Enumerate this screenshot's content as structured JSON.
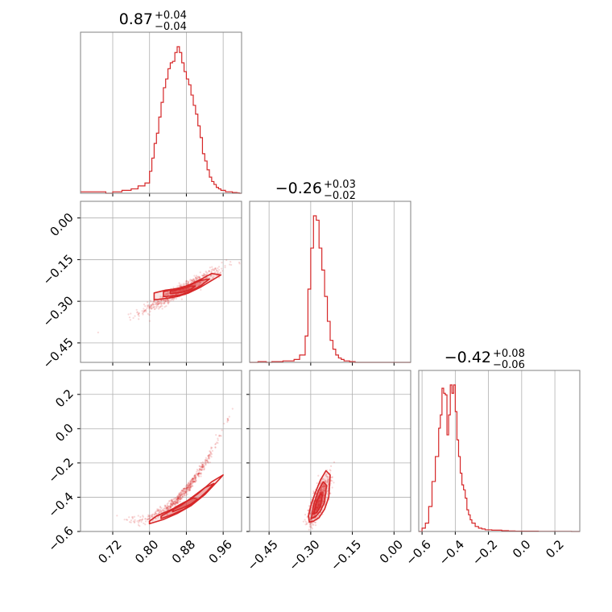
{
  "colors": {
    "series": "#d62728",
    "grid": "#b0b0b0",
    "frame": "#808080",
    "text": "#000000"
  },
  "chart_data": [
    {
      "type": "histogram",
      "panel": "x0-marginal",
      "title_main": "0.87",
      "title_plus": "+0.04",
      "title_minus": "−0.04",
      "xlim": [
        0.65,
        1.0
      ],
      "xticks": [
        0.72,
        0.8,
        0.88,
        0.96
      ],
      "bins_x": [
        0.65,
        0.677,
        0.705,
        0.72,
        0.74,
        0.76,
        0.775,
        0.79,
        0.8,
        0.805,
        0.81,
        0.815,
        0.82,
        0.825,
        0.83,
        0.835,
        0.84,
        0.845,
        0.85,
        0.855,
        0.86,
        0.865,
        0.87,
        0.875,
        0.88,
        0.885,
        0.89,
        0.895,
        0.9,
        0.905,
        0.91,
        0.915,
        0.92,
        0.925,
        0.93,
        0.935,
        0.94,
        0.945,
        0.95,
        0.955,
        0.96,
        0.965,
        0.97,
        0.975,
        0.98,
        0.985,
        0.99,
        0.995,
        1.0
      ],
      "counts": [
        0.01,
        0.01,
        0.0,
        0.01,
        0.02,
        0.03,
        0.05,
        0.07,
        0.15,
        0.24,
        0.34,
        0.41,
        0.52,
        0.62,
        0.72,
        0.78,
        0.85,
        0.89,
        0.9,
        0.96,
        1.0,
        0.96,
        0.89,
        0.83,
        0.78,
        0.74,
        0.67,
        0.6,
        0.54,
        0.46,
        0.38,
        0.27,
        0.22,
        0.16,
        0.11,
        0.08,
        0.06,
        0.04,
        0.03,
        0.02,
        0.02,
        0.01,
        0.01,
        0.01,
        0.005,
        0.005,
        0.003,
        0.0
      ]
    },
    {
      "type": "histogram",
      "panel": "x1-marginal",
      "title_main": "−0.26",
      "title_plus": "+0.03",
      "title_minus": "−0.02",
      "xlim": [
        -0.52,
        0.06
      ],
      "bins_x": [
        -0.52,
        -0.49,
        -0.46,
        -0.44,
        -0.42,
        -0.4,
        -0.38,
        -0.36,
        -0.34,
        -0.32,
        -0.31,
        -0.3,
        -0.29,
        -0.28,
        -0.27,
        -0.26,
        -0.25,
        -0.24,
        -0.23,
        -0.22,
        -0.21,
        -0.2,
        -0.19,
        -0.18,
        -0.17,
        -0.16,
        -0.14,
        -0.1,
        0.06
      ],
      "counts": [
        0.0,
        0.005,
        0.0,
        0.005,
        0.005,
        0.01,
        0.01,
        0.02,
        0.05,
        0.18,
        0.5,
        0.78,
        1.0,
        0.97,
        0.78,
        0.63,
        0.45,
        0.28,
        0.15,
        0.09,
        0.05,
        0.03,
        0.02,
        0.01,
        0.01,
        0.005,
        0.0,
        0.0
      ]
    },
    {
      "type": "histogram",
      "panel": "x2-marginal",
      "title_main": "−0.42",
      "title_plus": "+0.08",
      "title_minus": "−0.06",
      "xlim": [
        -0.62,
        0.35
      ],
      "xticks": [
        -0.6,
        -0.4,
        -0.2,
        0.0,
        0.2
      ],
      "bins_x": [
        -0.62,
        -0.6,
        -0.58,
        -0.56,
        -0.54,
        -0.52,
        -0.5,
        -0.49,
        -0.48,
        -0.47,
        -0.46,
        -0.45,
        -0.44,
        -0.43,
        -0.42,
        -0.41,
        -0.4,
        -0.39,
        -0.38,
        -0.37,
        -0.36,
        -0.35,
        -0.34,
        -0.33,
        -0.32,
        -0.31,
        -0.3,
        -0.28,
        -0.26,
        -0.24,
        -0.22,
        -0.2,
        -0.18,
        -0.16,
        -0.12,
        -0.08,
        -0.04,
        0.0,
        0.1,
        0.3,
        0.35
      ],
      "counts": [
        0.0,
        0.02,
        0.05,
        0.15,
        0.3,
        0.45,
        0.62,
        0.7,
        0.86,
        0.83,
        0.82,
        0.58,
        0.7,
        0.88,
        0.83,
        0.88,
        0.72,
        0.55,
        0.45,
        0.35,
        0.28,
        0.25,
        0.2,
        0.13,
        0.1,
        0.07,
        0.05,
        0.03,
        0.02,
        0.015,
        0.01,
        0.01,
        0.008,
        0.008,
        0.005,
        0.003,
        0.002,
        0.002,
        0.001,
        0.0
      ]
    },
    {
      "type": "scatter-contour",
      "panel": "x0-vs-x1",
      "xlim": [
        0.65,
        1.0
      ],
      "ylim": [
        -0.52,
        0.06
      ],
      "yticks": [
        0.0,
        -0.15,
        -0.3,
        -0.45
      ],
      "ytick_labels": [
        "0.00",
        "−0.15",
        "−0.30",
        "−0.45"
      ],
      "ridge": {
        "x0": 0.87,
        "y0": -0.26,
        "slope": 0.87
      },
      "contours": [
        {
          "x": [
            0.81,
            0.835,
            0.86,
            0.885,
            0.91,
            0.935,
            0.955,
            0.935,
            0.91,
            0.885,
            0.86,
            0.835,
            0.81
          ],
          "y": [
            -0.295,
            -0.29,
            -0.283,
            -0.27,
            -0.25,
            -0.225,
            -0.205,
            -0.2,
            -0.222,
            -0.242,
            -0.255,
            -0.26,
            -0.27
          ]
        },
        {
          "x": [
            0.83,
            0.85,
            0.87,
            0.89,
            0.91,
            0.93,
            0.91,
            0.89,
            0.87,
            0.85,
            0.83
          ],
          "y": [
            -0.283,
            -0.281,
            -0.276,
            -0.262,
            -0.245,
            -0.22,
            -0.225,
            -0.24,
            -0.25,
            -0.257,
            -0.266
          ]
        },
        {
          "x": [
            0.845,
            0.86,
            0.875,
            0.89,
            0.9,
            0.89,
            0.875,
            0.86,
            0.845
          ],
          "y": [
            -0.272,
            -0.27,
            -0.266,
            -0.257,
            -0.245,
            -0.245,
            -0.252,
            -0.259,
            -0.264
          ]
        }
      ]
    },
    {
      "type": "scatter-contour",
      "panel": "x0-vs-x2",
      "xlim": [
        0.65,
        1.0
      ],
      "ylim": [
        -0.6,
        0.34
      ],
      "xticks": [
        0.72,
        0.8,
        0.88,
        0.96
      ],
      "xtick_labels": [
        "0.72",
        "0.80",
        "0.88",
        "0.96"
      ],
      "yticks": [
        0.2,
        0.0,
        -0.2,
        -0.4,
        -0.6
      ],
      "ytick_labels": [
        "0.2",
        "0.0",
        "−0.2",
        "−0.4",
        "−0.6"
      ],
      "contours": [
        {
          "x": [
            0.8,
            0.83,
            0.86,
            0.89,
            0.92,
            0.95,
            0.96,
            0.935,
            0.905,
            0.875,
            0.845,
            0.815,
            0.8
          ],
          "y": [
            -0.555,
            -0.53,
            -0.495,
            -0.45,
            -0.385,
            -0.3,
            -0.27,
            -0.31,
            -0.38,
            -0.435,
            -0.475,
            -0.51,
            -0.54
          ]
        },
        {
          "x": [
            0.825,
            0.85,
            0.875,
            0.9,
            0.925,
            0.94,
            0.92,
            0.895,
            0.87,
            0.845,
            0.825
          ],
          "y": [
            -0.525,
            -0.5,
            -0.47,
            -0.425,
            -0.365,
            -0.32,
            -0.345,
            -0.395,
            -0.445,
            -0.48,
            -0.51
          ]
        },
        {
          "x": [
            0.85,
            0.87,
            0.89,
            0.905,
            0.895,
            0.875,
            0.855,
            0.85
          ],
          "y": [
            -0.485,
            -0.465,
            -0.44,
            -0.41,
            -0.405,
            -0.43,
            -0.46,
            -0.48
          ]
        }
      ]
    },
    {
      "type": "scatter-contour",
      "panel": "x1-vs-x2",
      "xlim": [
        -0.52,
        0.06
      ],
      "ylim": [
        -0.6,
        0.34
      ],
      "xticks": [
        -0.45,
        -0.3,
        -0.15,
        0.0
      ],
      "xtick_labels": [
        "−0.45",
        "−0.30",
        "−0.15",
        "0.00"
      ],
      "contours": [
        {
          "x": [
            -0.305,
            -0.29,
            -0.27,
            -0.25,
            -0.235,
            -0.23,
            -0.245,
            -0.265,
            -0.285,
            -0.3,
            -0.308,
            -0.305
          ],
          "y": [
            -0.545,
            -0.54,
            -0.52,
            -0.47,
            -0.4,
            -0.27,
            -0.245,
            -0.3,
            -0.38,
            -0.45,
            -0.51,
            -0.545
          ]
        },
        {
          "x": [
            -0.298,
            -0.283,
            -0.265,
            -0.25,
            -0.243,
            -0.255,
            -0.272,
            -0.289,
            -0.298
          ],
          "y": [
            -0.525,
            -0.515,
            -0.48,
            -0.43,
            -0.33,
            -0.31,
            -0.36,
            -0.44,
            -0.525
          ]
        },
        {
          "x": [
            -0.29,
            -0.278,
            -0.265,
            -0.258,
            -0.265,
            -0.28,
            -0.29
          ],
          "y": [
            -0.5,
            -0.49,
            -0.455,
            -0.39,
            -0.38,
            -0.43,
            -0.5
          ]
        }
      ]
    }
  ]
}
